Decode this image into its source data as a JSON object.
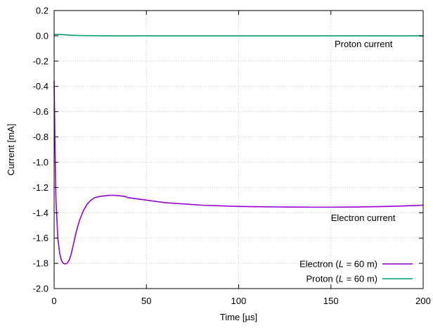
{
  "chart_data": {
    "type": "line",
    "title": "",
    "xlabel": "Time [µs]",
    "ylabel": "Current [mA]",
    "xlim": [
      0,
      200
    ],
    "ylim": [
      -2.0,
      0.2
    ],
    "grid": true,
    "legend_position": "bottom-right",
    "x_ticks": [
      0,
      50,
      100,
      150,
      200
    ],
    "x_tick_labels": [
      "0",
      "50",
      "100",
      "150",
      "200"
    ],
    "y_ticks": [
      0.2,
      0.0,
      -0.2,
      -0.4,
      -0.6,
      -0.8,
      -1.0,
      -1.2,
      -1.4,
      -1.6,
      -1.8,
      -2.0
    ],
    "y_tick_labels": [
      "0.2",
      "0.0",
      "-0.2",
      "-0.4",
      "-0.6",
      "-0.8",
      "-1.0",
      "-1.2",
      "-1.4",
      "-1.6",
      "-1.8",
      "-2.0"
    ],
    "series": [
      {
        "name": "Electron",
        "legend": {
          "prefix": "Electron (",
          "italic": "L",
          "suffix": " = 60 m)"
        },
        "color": "#9400d3",
        "x": [
          0,
          0.5,
          1,
          2,
          3,
          4,
          5,
          6,
          7,
          8,
          9,
          10,
          12,
          14,
          16,
          18,
          20,
          22,
          25,
          28,
          30,
          33,
          35,
          38,
          40,
          45,
          50,
          55,
          60,
          70,
          80,
          90,
          100,
          110,
          120,
          130,
          140,
          150,
          160,
          170,
          180,
          190,
          195,
          200
        ],
        "y": [
          -0.36,
          -0.9,
          -1.3,
          -1.6,
          -1.72,
          -1.78,
          -1.8,
          -1.805,
          -1.8,
          -1.78,
          -1.74,
          -1.68,
          -1.55,
          -1.45,
          -1.38,
          -1.33,
          -1.3,
          -1.28,
          -1.27,
          -1.265,
          -1.262,
          -1.262,
          -1.265,
          -1.27,
          -1.28,
          -1.29,
          -1.3,
          -1.31,
          -1.32,
          -1.33,
          -1.34,
          -1.345,
          -1.35,
          -1.352,
          -1.354,
          -1.355,
          -1.356,
          -1.356,
          -1.355,
          -1.353,
          -1.35,
          -1.346,
          -1.343,
          -1.34
        ]
      },
      {
        "name": "Proton",
        "legend": {
          "prefix": "Proton (",
          "italic": "L",
          "suffix": " = 60 m)"
        },
        "color": "#009e73",
        "x": [
          0,
          2,
          4,
          6,
          8,
          10,
          15,
          20,
          30,
          50,
          75,
          100,
          125,
          150,
          175,
          200
        ],
        "y": [
          0.01,
          0.012,
          0.01,
          0.008,
          0.006,
          0.004,
          0.002,
          0.001,
          0.0,
          0.0,
          0.0,
          0.0,
          0.0,
          0.0,
          0.0,
          0.0
        ]
      }
    ],
    "annotations": [
      {
        "text": "Proton current",
        "x": 152,
        "y": -0.065
      },
      {
        "text": "Electron current",
        "x": 150,
        "y": -1.44
      }
    ]
  }
}
